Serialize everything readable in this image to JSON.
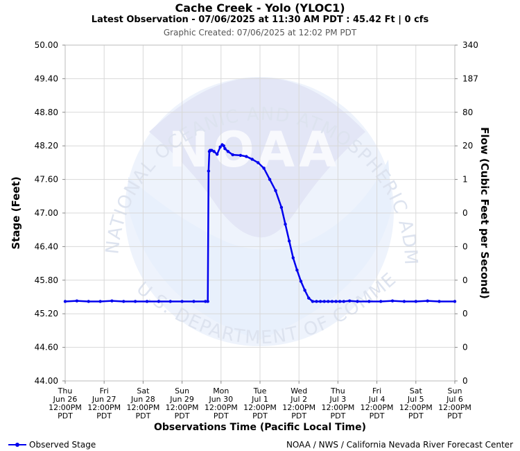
{
  "header": {
    "title": "Cache Creek - Yolo (YLOC1)",
    "subtitle": "Latest Observation - 07/06/2025 at 11:30 AM PDT : 45.42 Ft | 0 cfs",
    "created": "Graphic Created: 07/06/2025 at 12:02 PM PDT"
  },
  "footer": {
    "legend_label": "Observed Stage",
    "credit": "NOAA / NWS / California Nevada River Forecast Center"
  },
  "watermark": {
    "logo_text": "NOAA",
    "arc_top": "NATIONAL OCEANIC AND ATMOSPHERIC ADMINISTRATION",
    "arc_bottom": "U.S. DEPARTMENT OF COMMERCE"
  },
  "chart_data": {
    "type": "line",
    "title": "Cache Creek - Yolo (YLOC1)",
    "xlabel": "Observations Time (Pacific Local Time)",
    "ylabel": "Stage (Feet)",
    "y2label": "Flow (Cubic Feet per Second)",
    "ylim": [
      44.0,
      50.0
    ],
    "xlim": [
      "Jun 26 12:00PM",
      "Jul 6 12:00PM"
    ],
    "yticks": [
      "44.00",
      "44.60",
      "45.20",
      "45.80",
      "46.40",
      "47.00",
      "47.60",
      "48.20",
      "48.80",
      "49.40",
      "50.00"
    ],
    "y2ticks": [
      "0",
      "0",
      "0",
      "0",
      "0",
      "0",
      "1",
      "20",
      "80",
      "187",
      "340"
    ],
    "xticks": [
      [
        "Thu",
        "Jun 26",
        "12:00PM",
        "PDT"
      ],
      [
        "Fri",
        "Jun 27",
        "12:00PM",
        "PDT"
      ],
      [
        "Sat",
        "Jun 28",
        "12:00PM",
        "PDT"
      ],
      [
        "Sun",
        "Jun 29",
        "12:00PM",
        "PDT"
      ],
      [
        "Mon",
        "Jun 30",
        "12:00PM",
        "PDT"
      ],
      [
        "Tue",
        "Jul 1",
        "12:00PM",
        "PDT"
      ],
      [
        "Wed",
        "Jul 2",
        "12:00PM",
        "PDT"
      ],
      [
        "Thu",
        "Jul 3",
        "12:00PM",
        "PDT"
      ],
      [
        "Fri",
        "Jul 4",
        "12:00PM",
        "PDT"
      ],
      [
        "Sat",
        "Jul 5",
        "12:00PM",
        "PDT"
      ],
      [
        "Sun",
        "Jul 6",
        "12:00PM",
        "PDT"
      ]
    ],
    "grid": true,
    "legend_position": "bottom-left",
    "colors": {
      "series": "#0000ee",
      "grid": "#d8d8d8",
      "watermark": "#e6ebf8"
    },
    "series": [
      {
        "name": "Observed Stage",
        "x_days_after_jun26_noon": [
          0,
          0.3,
          0.6,
          0.9,
          1.2,
          1.5,
          1.8,
          2.1,
          2.4,
          2.7,
          3.0,
          3.3,
          3.6,
          3.66,
          3.68,
          3.7,
          3.72,
          3.76,
          3.82,
          3.9,
          3.98,
          4.03,
          4.07,
          4.1,
          4.18,
          4.3,
          4.5,
          4.65,
          4.8,
          4.95,
          5.1,
          5.25,
          5.4,
          5.55,
          5.65,
          5.75,
          5.85,
          5.95,
          6.05,
          6.15,
          6.25,
          6.35,
          6.45,
          6.55,
          6.65,
          6.75,
          6.85,
          6.95,
          7.05,
          7.15,
          7.3,
          7.5,
          7.8,
          8.1,
          8.4,
          8.7,
          9.0,
          9.3,
          9.6,
          10.0
        ],
        "values": [
          45.42,
          45.43,
          45.42,
          45.42,
          45.43,
          45.42,
          45.42,
          45.42,
          45.42,
          45.42,
          45.42,
          45.42,
          45.42,
          45.42,
          47.75,
          48.1,
          48.12,
          48.12,
          48.1,
          48.05,
          48.18,
          48.22,
          48.2,
          48.15,
          48.1,
          48.04,
          48.03,
          48.01,
          47.96,
          47.9,
          47.8,
          47.6,
          47.4,
          47.1,
          46.8,
          46.5,
          46.2,
          45.98,
          45.78,
          45.62,
          45.48,
          45.42,
          45.42,
          45.42,
          45.42,
          45.42,
          45.42,
          45.42,
          45.42,
          45.42,
          45.43,
          45.42,
          45.42,
          45.42,
          45.43,
          45.42,
          45.42,
          45.43,
          45.42,
          45.42
        ]
      }
    ]
  }
}
